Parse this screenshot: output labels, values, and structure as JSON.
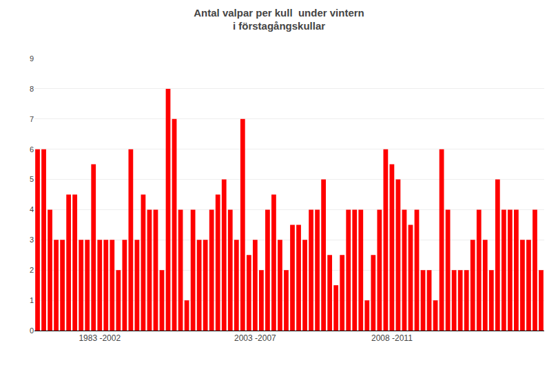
{
  "chart_data": {
    "type": "bar",
    "title": "Antal valpar per kull  under vintern\ni förstagångskullar",
    "categories": [
      null,
      null,
      null,
      null,
      null,
      null,
      null,
      null,
      null,
      null,
      "1983 -2002",
      null,
      null,
      null,
      null,
      null,
      null,
      null,
      null,
      null,
      null,
      null,
      null,
      null,
      null,
      null,
      null,
      null,
      null,
      null,
      null,
      null,
      null,
      null,
      null,
      "2003 -2007",
      null,
      null,
      null,
      null,
      null,
      null,
      null,
      null,
      null,
      null,
      null,
      null,
      null,
      null,
      null,
      null,
      null,
      null,
      null,
      null,
      null,
      "2008 -2011",
      null,
      null,
      null,
      null,
      null,
      null,
      null,
      null,
      null,
      null,
      null,
      null,
      null,
      null,
      null,
      null,
      null,
      null,
      null,
      null,
      null,
      null,
      null,
      null
    ],
    "values": [
      6,
      6,
      4,
      3,
      3,
      4.5,
      4.5,
      3,
      3,
      5.5,
      3,
      3,
      3,
      2,
      3,
      6,
      3,
      4.5,
      4,
      4,
      2,
      8,
      7,
      4,
      1,
      4,
      3,
      3,
      4,
      4.5,
      5,
      4,
      3,
      7,
      2.5,
      3,
      2,
      4,
      4.5,
      3,
      2,
      3.5,
      3.5,
      3,
      4,
      4,
      5,
      2.5,
      1.5,
      2.5,
      4,
      4,
      4,
      1,
      2.5,
      4,
      6,
      5.5,
      5,
      4,
      3.5,
      4,
      2,
      2,
      1,
      6,
      4,
      2,
      2,
      2,
      3,
      4,
      3,
      2,
      5,
      4,
      4,
      4,
      3,
      3,
      4,
      2
    ],
    "color": "#FF0000",
    "ylim": [
      0,
      9
    ],
    "yticks": [
      0,
      1,
      2,
      3,
      4,
      5,
      6,
      7,
      8,
      9
    ],
    "grid": true
  }
}
